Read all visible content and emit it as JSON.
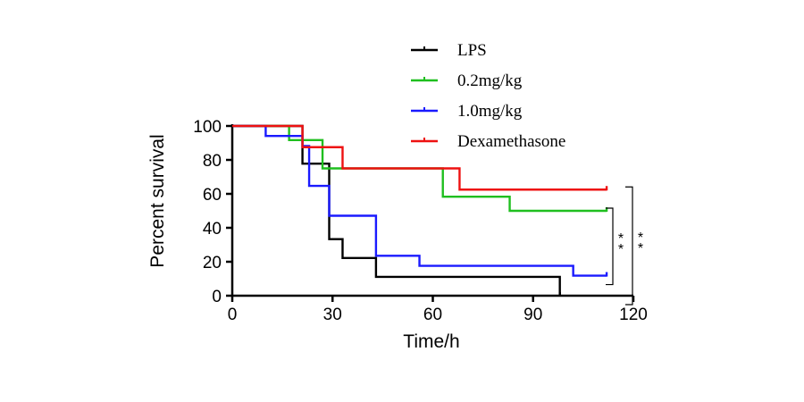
{
  "chart_data": {
    "type": "line",
    "step": true,
    "xlabel": "Time/h",
    "ylabel": "Percent survival",
    "xlim": [
      0,
      120
    ],
    "ylim": [
      0,
      100
    ],
    "xticks": [
      0,
      30,
      60,
      90,
      120
    ],
    "yticks": [
      0,
      20,
      40,
      60,
      80,
      100
    ],
    "grid": false,
    "legend_position": "top",
    "series": [
      {
        "name": "LPS",
        "color": "#000000",
        "x": [
          0,
          21,
          27,
          29,
          30,
          33,
          43,
          98
        ],
        "y": [
          100,
          77.8,
          77.8,
          33.3,
          33.3,
          22.2,
          11.1,
          0
        ]
      },
      {
        "name": "0.2mg/kg",
        "color": "#1fbf1f",
        "x": [
          0,
          17,
          27,
          63,
          83,
          112
        ],
        "y": [
          100,
          91.7,
          75,
          58.3,
          50,
          50
        ]
      },
      {
        "name": "1.0mg/kg",
        "color": "#1a1aff",
        "x": [
          0,
          10,
          21,
          23,
          29,
          43,
          56,
          102,
          112
        ],
        "y": [
          100,
          94.1,
          88.2,
          64.7,
          47.1,
          23.5,
          17.6,
          11.8,
          11.8
        ]
      },
      {
        "name": "Dexamethasone",
        "color": "#ee1111",
        "x": [
          0,
          21,
          33,
          68,
          112
        ],
        "y": [
          100,
          87.5,
          75,
          62.5,
          62.5
        ]
      }
    ],
    "annotations": [
      {
        "text": "**",
        "brackets": [
          "1.0mg/kg",
          "0.2mg/kg"
        ]
      },
      {
        "text": "**",
        "brackets": [
          "LPS",
          "Dexamethasone"
        ]
      }
    ]
  }
}
